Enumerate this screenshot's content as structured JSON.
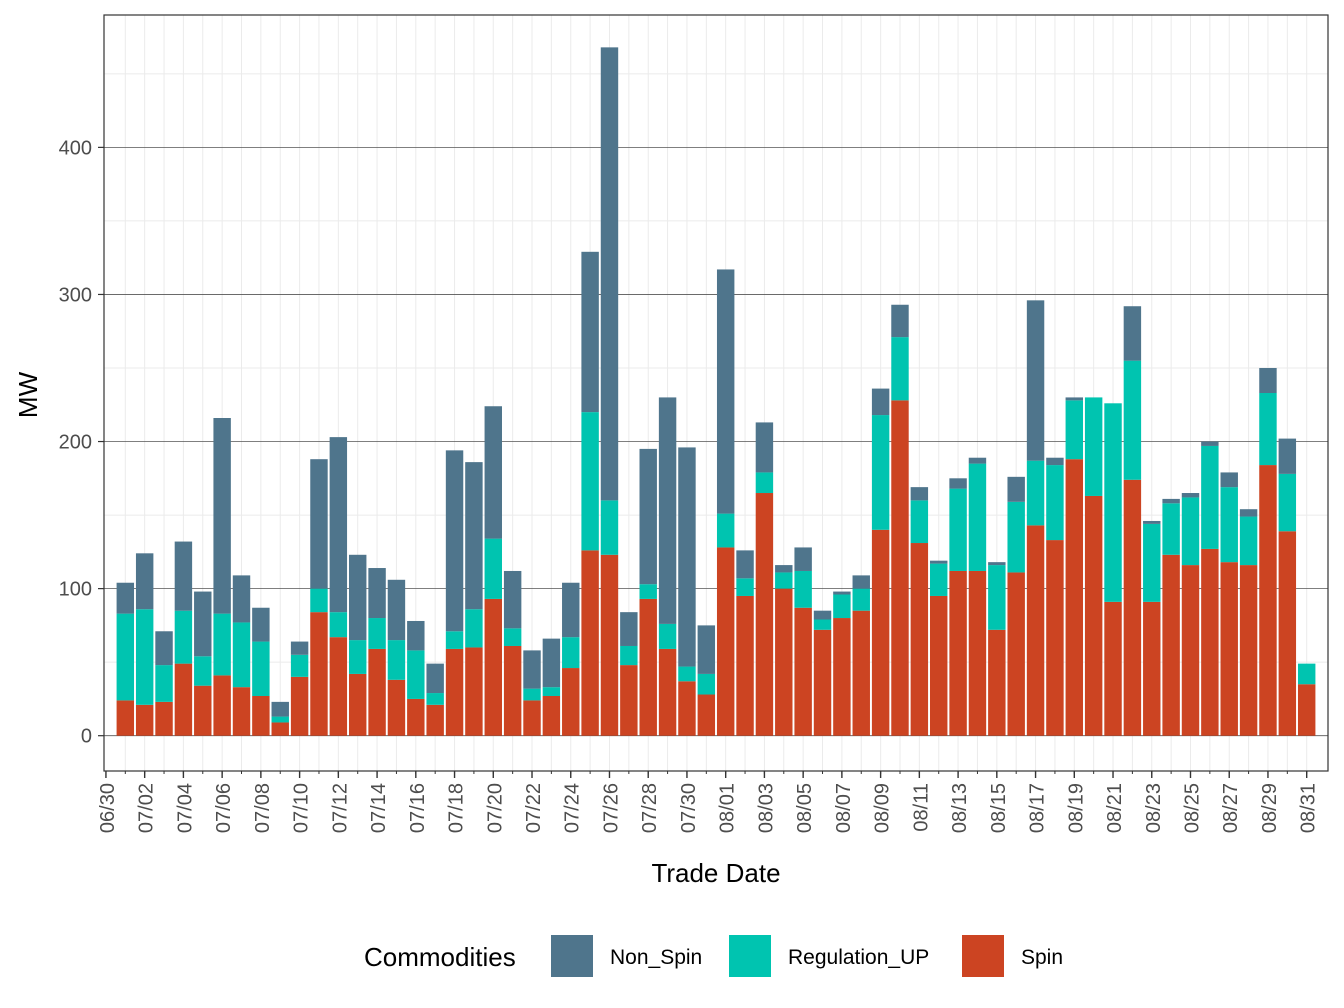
{
  "chart_data": {
    "type": "bar",
    "stacked": true,
    "xlabel": "Trade Date",
    "ylabel": "MW",
    "ylim": [
      -24,
      490
    ],
    "yticks": [
      0,
      100,
      200,
      300,
      400
    ],
    "ytick_labels": [
      "0",
      "100",
      "200",
      "300",
      "400"
    ],
    "categories": [
      "07/01",
      "07/02",
      "07/03",
      "07/04",
      "07/05",
      "07/06",
      "07/07",
      "07/08",
      "07/09",
      "07/10",
      "07/11",
      "07/12",
      "07/13",
      "07/14",
      "07/15",
      "07/16",
      "07/17",
      "07/18",
      "07/19",
      "07/20",
      "07/21",
      "07/22",
      "07/23",
      "07/24",
      "07/25",
      "07/26",
      "07/27",
      "07/28",
      "07/29",
      "07/30",
      "07/31",
      "08/01",
      "08/02",
      "08/03",
      "08/04",
      "08/05",
      "08/06",
      "08/07",
      "08/08",
      "08/09",
      "08/10",
      "08/11",
      "08/12",
      "08/13",
      "08/14",
      "08/15",
      "08/16",
      "08/17",
      "08/18",
      "08/19",
      "08/20",
      "08/21",
      "08/22",
      "08/23",
      "08/24",
      "08/25",
      "08/26",
      "08/27",
      "08/28",
      "08/29",
      "08/30",
      "08/31"
    ],
    "xtick_labels": [
      "06/30",
      "07/02",
      "07/04",
      "07/06",
      "07/08",
      "07/10",
      "07/12",
      "07/14",
      "07/16",
      "07/18",
      "07/20",
      "07/22",
      "07/24",
      "07/26",
      "07/28",
      "07/30",
      "08/01",
      "08/03",
      "08/05",
      "08/07",
      "08/09",
      "08/11",
      "08/13",
      "08/15",
      "08/17",
      "08/19",
      "08/21",
      "08/23",
      "08/25",
      "08/27",
      "08/29",
      "08/31"
    ],
    "xtick_offset": -1,
    "series": [
      {
        "name": "Spin",
        "color": "#CC4422",
        "values": [
          24,
          21,
          23,
          49,
          34,
          41,
          33,
          27,
          9,
          40,
          84,
          67,
          42,
          59,
          38,
          25,
          21,
          59,
          60,
          93,
          61,
          24,
          27,
          46,
          126,
          123,
          48,
          93,
          59,
          37,
          28,
          128,
          95,
          165,
          100,
          87,
          72,
          80,
          85,
          140,
          228,
          131,
          95,
          112,
          112,
          72,
          111,
          143,
          133,
          188,
          163,
          91,
          174,
          91,
          123,
          116,
          127,
          118,
          116,
          184,
          139,
          35
        ]
      },
      {
        "name": "Regulation_UP",
        "color": "#00C4B0",
        "values": [
          59,
          65,
          25,
          36,
          20,
          42,
          44,
          37,
          4,
          15,
          16,
          17,
          23,
          21,
          27,
          33,
          8,
          12,
          26,
          41,
          12,
          8,
          6,
          21,
          94,
          37,
          13,
          10,
          17,
          10,
          14,
          23,
          12,
          14,
          11,
          25,
          7,
          16,
          15,
          78,
          43,
          29,
          22,
          56,
          73,
          44,
          48,
          44,
          51,
          40,
          67,
          135,
          81,
          53,
          35,
          46,
          70,
          51,
          33,
          49,
          39,
          14
        ]
      },
      {
        "name": "Non_Spin",
        "color": "#4F758C",
        "values": [
          21,
          38,
          23,
          47,
          44,
          133,
          32,
          23,
          10,
          9,
          88,
          119,
          58,
          34,
          41,
          20,
          20,
          123,
          100,
          90,
          39,
          26,
          33,
          37,
          109,
          308,
          23,
          92,
          154,
          149,
          33,
          166,
          19,
          34,
          5,
          16,
          6,
          2,
          9,
          18,
          22,
          9,
          2,
          7,
          4,
          2,
          17,
          109,
          5,
          2,
          0,
          0,
          37,
          2,
          3,
          3,
          3,
          10,
          5,
          17,
          24,
          0
        ]
      }
    ],
    "legend": {
      "title": "Commodities",
      "position": "bottom",
      "items": [
        {
          "label": "Non_Spin",
          "color": "#4F758C"
        },
        {
          "label": "Regulation_UP",
          "color": "#00C4B0"
        },
        {
          "label": "Spin",
          "color": "#CC4422"
        }
      ]
    }
  }
}
